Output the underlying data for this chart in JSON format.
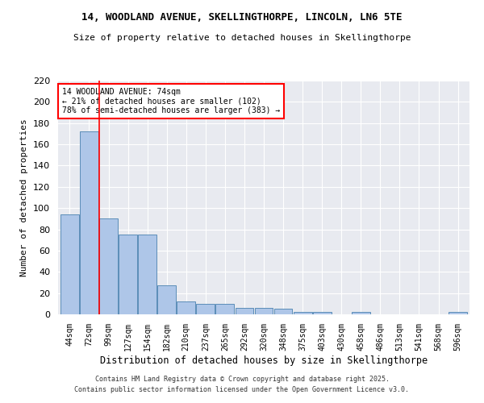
{
  "title1": "14, WOODLAND AVENUE, SKELLINGTHORPE, LINCOLN, LN6 5TE",
  "title2": "Size of property relative to detached houses in Skellingthorpe",
  "xlabel": "Distribution of detached houses by size in Skellingthorpe",
  "ylabel": "Number of detached properties",
  "categories": [
    "44sqm",
    "72sqm",
    "99sqm",
    "127sqm",
    "154sqm",
    "182sqm",
    "210sqm",
    "237sqm",
    "265sqm",
    "292sqm",
    "320sqm",
    "348sqm",
    "375sqm",
    "403sqm",
    "430sqm",
    "458sqm",
    "486sqm",
    "513sqm",
    "541sqm",
    "568sqm",
    "596sqm"
  ],
  "values": [
    94,
    172,
    90,
    75,
    75,
    27,
    12,
    10,
    10,
    6,
    6,
    5,
    2,
    2,
    0,
    2,
    0,
    0,
    0,
    0,
    2
  ],
  "bar_color": "#aec6e8",
  "bar_edge_color": "#5b8db8",
  "background_color": "#e8eaf0",
  "grid_color": "#ffffff",
  "red_line_x": 1.5,
  "annotation_text": "14 WOODLAND AVENUE: 74sqm\n← 21% of detached houses are smaller (102)\n78% of semi-detached houses are larger (383) →",
  "ylim": [
    0,
    220
  ],
  "yticks": [
    0,
    20,
    40,
    60,
    80,
    100,
    120,
    140,
    160,
    180,
    200,
    220
  ],
  "footer1": "Contains HM Land Registry data © Crown copyright and database right 2025.",
  "footer2": "Contains public sector information licensed under the Open Government Licence v3.0."
}
